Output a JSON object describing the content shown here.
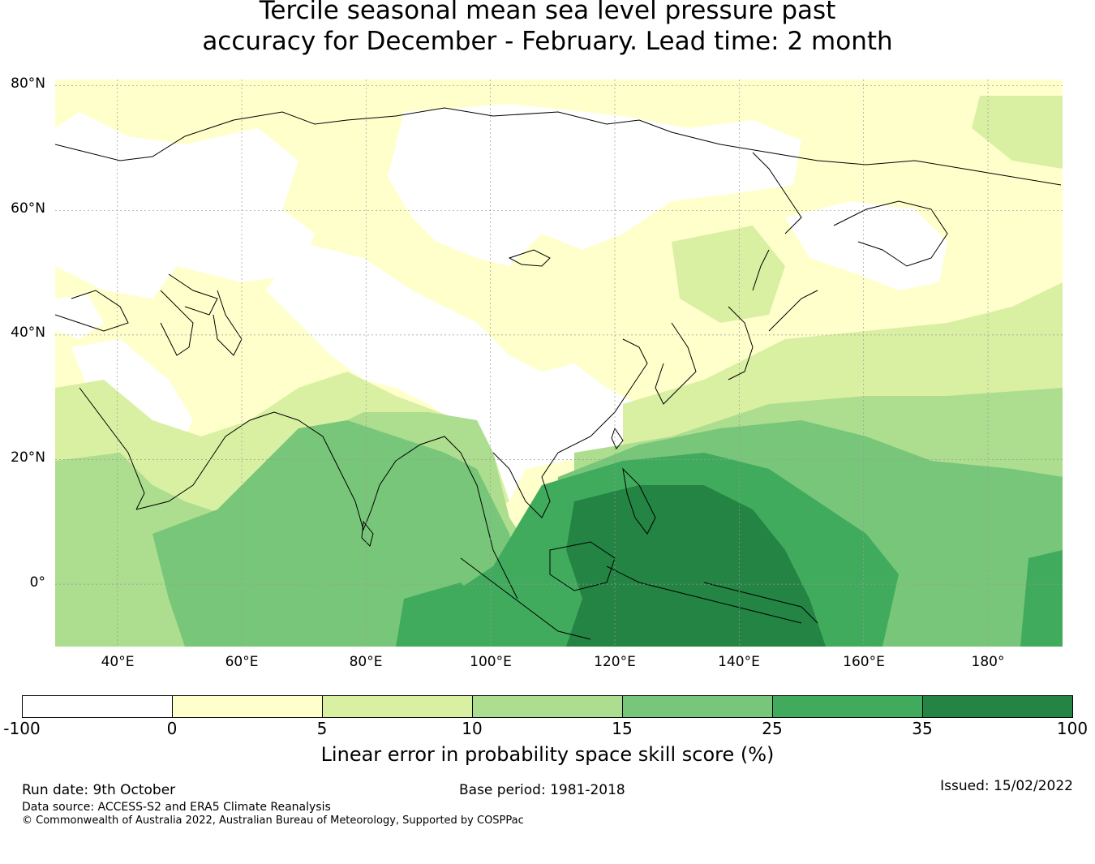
{
  "title": {
    "line1": "Tercile seasonal mean sea level pressure past",
    "line2": "accuracy for December - February. Lead time: 2 month"
  },
  "axes": {
    "lat_labels": [
      "80°N",
      "60°N",
      "40°N",
      "20°N",
      "0°"
    ],
    "lon_labels": [
      "40°E",
      "60°E",
      "80°E",
      "100°E",
      "120°E",
      "140°E",
      "160°E",
      "180°"
    ],
    "lon_range": [
      30,
      192
    ],
    "lat_range": [
      -10,
      81
    ]
  },
  "colorbar": {
    "ticks": [
      "-100",
      "0",
      "5",
      "10",
      "15",
      "25",
      "35",
      "100"
    ],
    "colors": [
      "#ffffff",
      "#ffffcc",
      "#d9f0a3",
      "#addd8e",
      "#78c679",
      "#41ab5d",
      "#238443"
    ],
    "label": "Linear error in probability space skill score (%)"
  },
  "footer": {
    "run_date": "Run date: 9th October",
    "base_period": "Base period: 1981-2018",
    "issued": "Issued: 15/02/2022",
    "data_source": "Data source: ACCESS-S2 and ERA5 Climate Reanalysis",
    "copyright": "© Commonwealth of Australia 2022, Australian Bureau of Meteorology, Supported by COSPPac"
  }
}
